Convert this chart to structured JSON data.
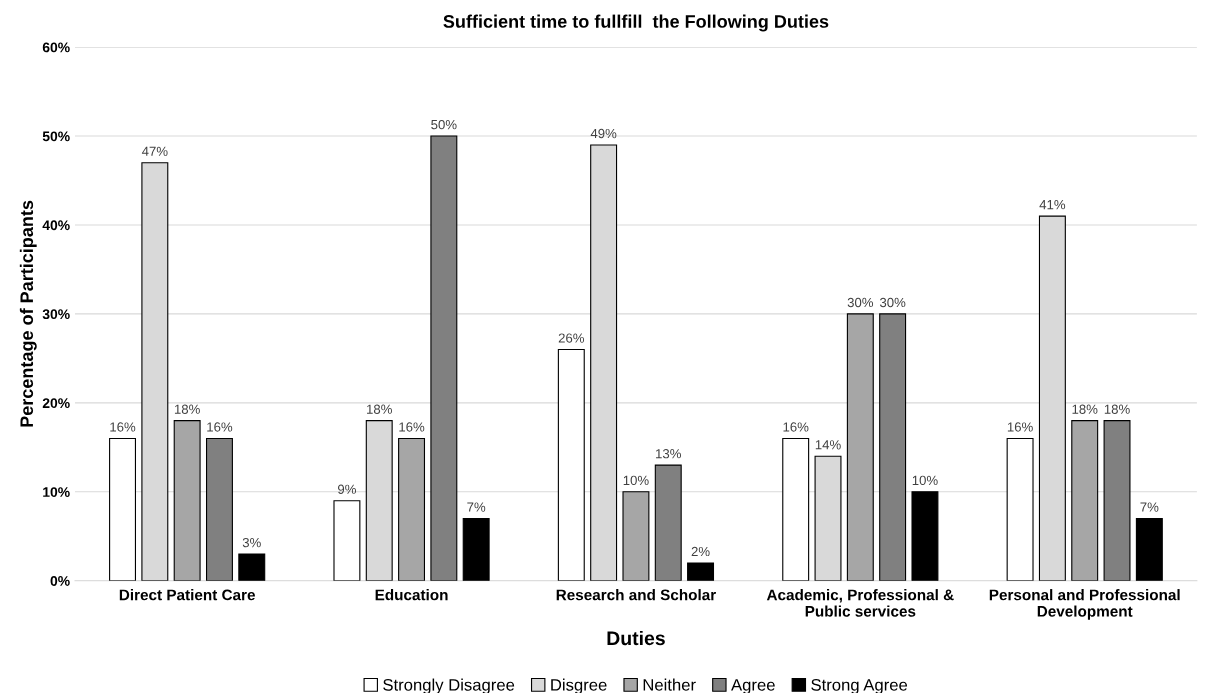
{
  "chart_data": {
    "type": "bar",
    "title": "Sufficient time to fullfill  the Following Duties",
    "xlabel": "Duties",
    "ylabel": "Percentage of Participants",
    "categories": [
      "Direct Patient Care",
      "Education",
      "Research and Scholar",
      "Academic, Professional & Public services",
      "Personal and Professional Development"
    ],
    "series": [
      {
        "name": "Strongly Disagree",
        "color": "#ffffff",
        "values": [
          16,
          9,
          26,
          16,
          16
        ],
        "value_labels": [
          "16%",
          "9%",
          "26%",
          "16%",
          "16%"
        ]
      },
      {
        "name": "Disgree",
        "color": "#d9d9d9",
        "values": [
          47,
          18,
          49,
          14,
          41
        ],
        "value_labels": [
          "47%",
          "18%",
          "49%",
          "14%",
          "41%"
        ]
      },
      {
        "name": "Neither",
        "color": "#a6a6a6",
        "values": [
          18,
          16,
          10,
          30,
          18
        ],
        "value_labels": [
          "18%",
          "16%",
          "10%",
          "30%",
          "18%"
        ]
      },
      {
        "name": "Agree",
        "color": "#808080",
        "values": [
          16,
          50,
          13,
          30,
          18
        ],
        "value_labels": [
          "16%",
          "50%",
          "13%",
          "30%",
          "18%"
        ]
      },
      {
        "name": "Strong Agree",
        "color": "#000000",
        "values": [
          3,
          7,
          2,
          10,
          7
        ],
        "value_labels": [
          "3%",
          "7%",
          "2%",
          "10%",
          "7%"
        ]
      }
    ],
    "ylim": [
      0,
      60
    ],
    "yticks": [
      {
        "value": 0,
        "label": "0%"
      },
      {
        "value": 10,
        "label": "10%"
      },
      {
        "value": 20,
        "label": "20%"
      },
      {
        "value": 30,
        "label": "30%"
      },
      {
        "value": 40,
        "label": "40%"
      },
      {
        "value": 50,
        "label": "50%"
      },
      {
        "value": 60,
        "label": "60%"
      }
    ],
    "grid": "y",
    "legend": "bottom"
  }
}
